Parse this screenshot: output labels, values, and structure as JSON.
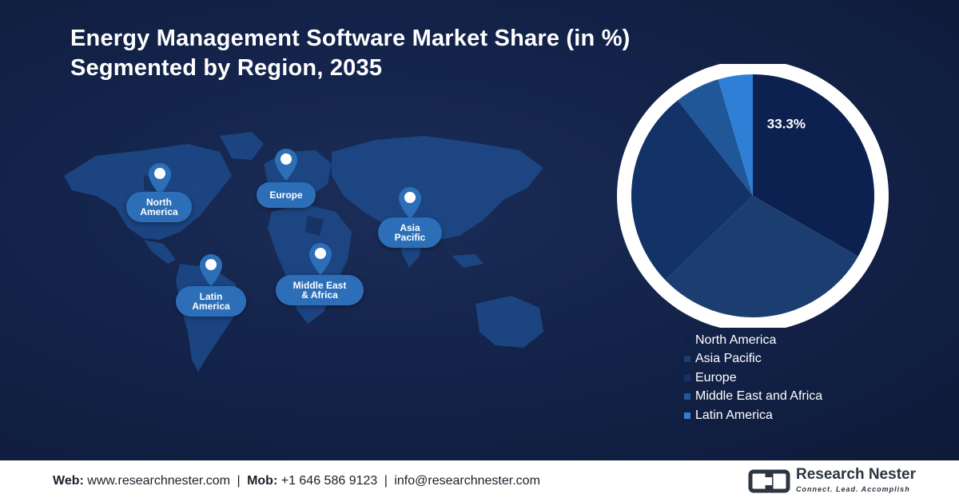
{
  "title": "Energy Management Software Market Share (in %)\nSegmented by Region, 2035",
  "map_labels": {
    "north_america": "North\nAmerica",
    "europe": "Europe",
    "asia_pacific": "Asia\nPacific",
    "latin_america": "Latin\nAmerica",
    "middle_east_africa": "Middle East\n& Africa"
  },
  "chart_data": {
    "type": "pie",
    "series": [
      {
        "name": "North America",
        "value": 33.3,
        "color": "#0c2150"
      },
      {
        "name": "Asia Pacific",
        "value": 29.5,
        "color": "#1b3d70"
      },
      {
        "name": "Europe",
        "value": 26.6,
        "color": "#123268"
      },
      {
        "name": "Middle East and Africa",
        "value": 6.0,
        "color": "#1f5799"
      },
      {
        "name": "Latin America",
        "value": 4.6,
        "color": "#2f7fd6"
      }
    ],
    "data_labels": [
      {
        "series": "North America",
        "text": "33.3%"
      }
    ],
    "legend": "bottom"
  },
  "footer": {
    "web_label": "Web:",
    "web_value": "www.researchnester.com",
    "mob_label": "Mob:",
    "mob_value": "+1 646 586 9123",
    "email": "info@researchnester.com",
    "separator": "|"
  },
  "logo": {
    "name": "Research Nester",
    "tagline": "Connect. Lead. Accomplish"
  }
}
